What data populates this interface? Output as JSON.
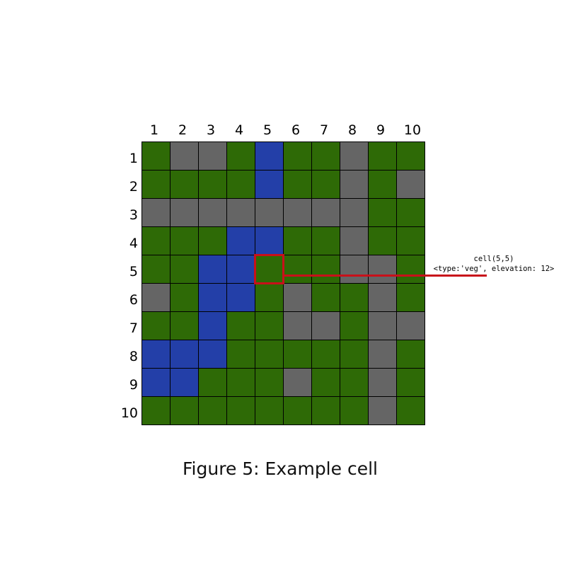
{
  "grid": {
    "column_labels": [
      "1",
      "2",
      "3",
      "4",
      "5",
      "6",
      "7",
      "8",
      "9",
      "10"
    ],
    "row_labels": [
      "1",
      "2",
      "3",
      "4",
      "5",
      "6",
      "7",
      "8",
      "9",
      "10"
    ],
    "cell_types": [
      [
        "veg",
        "rock",
        "rock",
        "veg",
        "water",
        "veg",
        "veg",
        "rock",
        "veg",
        "veg"
      ],
      [
        "veg",
        "veg",
        "veg",
        "veg",
        "water",
        "veg",
        "veg",
        "rock",
        "veg",
        "rock"
      ],
      [
        "rock",
        "rock",
        "rock",
        "rock",
        "rock",
        "rock",
        "rock",
        "rock",
        "veg",
        "veg"
      ],
      [
        "veg",
        "veg",
        "veg",
        "water",
        "water",
        "veg",
        "veg",
        "rock",
        "veg",
        "veg"
      ],
      [
        "veg",
        "veg",
        "water",
        "water",
        "veg",
        "veg",
        "veg",
        "rock",
        "rock",
        "veg"
      ],
      [
        "rock",
        "veg",
        "water",
        "water",
        "veg",
        "rock",
        "veg",
        "veg",
        "rock",
        "veg"
      ],
      [
        "veg",
        "veg",
        "water",
        "veg",
        "veg",
        "rock",
        "rock",
        "veg",
        "rock",
        "rock"
      ],
      [
        "water",
        "water",
        "water",
        "veg",
        "veg",
        "veg",
        "veg",
        "veg",
        "rock",
        "veg"
      ],
      [
        "water",
        "water",
        "veg",
        "veg",
        "veg",
        "rock",
        "veg",
        "veg",
        "rock",
        "veg"
      ],
      [
        "veg",
        "veg",
        "veg",
        "veg",
        "veg",
        "veg",
        "veg",
        "veg",
        "rock",
        "veg"
      ]
    ],
    "colors": {
      "veg": "#2e6a06",
      "rock": "#656565",
      "water": "#233fa8"
    },
    "grid_line_color": "#000000"
  },
  "highlight": {
    "row": 5,
    "col": 5,
    "color": "#c8101a"
  },
  "callout": {
    "title": "cell(5,5)",
    "attributes": "<type:'veg', elevation: 12>"
  },
  "caption": "Figure 5: Example cell"
}
